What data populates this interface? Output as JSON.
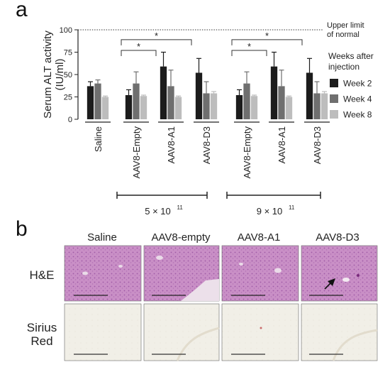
{
  "panel_a_label": "a",
  "panel_b_label": "b",
  "chart_data": {
    "type": "bar",
    "ylabel": "Serum ALT activity (IU/ml)",
    "ylabel_line1": "Serum ALT activity",
    "ylabel_line2": "(IU/ml)",
    "ylim": [
      0,
      100
    ],
    "yticks": [
      0,
      25,
      50,
      75,
      100
    ],
    "grid": false,
    "legend_placement": "right",
    "legend_title_line1": "Weeks after",
    "legend_title_line2": "injection",
    "reference_line": {
      "value": 100,
      "label_line1": "Upper limit",
      "label_line2": "of normal",
      "style": "dotted"
    },
    "categories": [
      "Saline",
      "AAV8-Empty",
      "AAV8-A1",
      "AAV8-D3",
      "AAV8-Empty",
      "AAV8-A1",
      "AAV8-D3"
    ],
    "dose_groups": [
      {
        "label_base": "5 × 10",
        "label_exp": "11"
      },
      {
        "label_base": "9 × 10",
        "label_exp": "11"
      }
    ],
    "series": [
      {
        "name": "Week 2",
        "color": "#1c1c1c",
        "values": [
          37,
          27,
          59,
          52,
          27,
          59,
          52
        ],
        "errors": [
          5,
          6,
          16,
          16,
          6,
          16,
          16
        ]
      },
      {
        "name": "Week 4",
        "color": "#6f6f6f",
        "values": [
          40,
          40,
          37,
          29,
          40,
          37,
          29
        ],
        "errors": [
          4,
          13,
          18,
          13,
          13,
          18,
          13
        ]
      },
      {
        "name": "Week 8",
        "color": "#bdbdbd",
        "values": [
          25,
          26,
          25,
          29,
          26,
          25,
          29
        ],
        "errors": [
          1,
          1,
          1,
          2,
          1,
          1,
          2
        ]
      }
    ],
    "significance_marks": [
      "*",
      "*",
      "*",
      "*"
    ]
  },
  "histology": {
    "columns": [
      "Saline",
      "AAV8-empty",
      "AAV8-A1",
      "AAV8-D3"
    ],
    "rows": [
      {
        "label_line1": "H&E",
        "label_line2": ""
      },
      {
        "label_line1": "Sirius",
        "label_line2": "Red"
      }
    ]
  }
}
